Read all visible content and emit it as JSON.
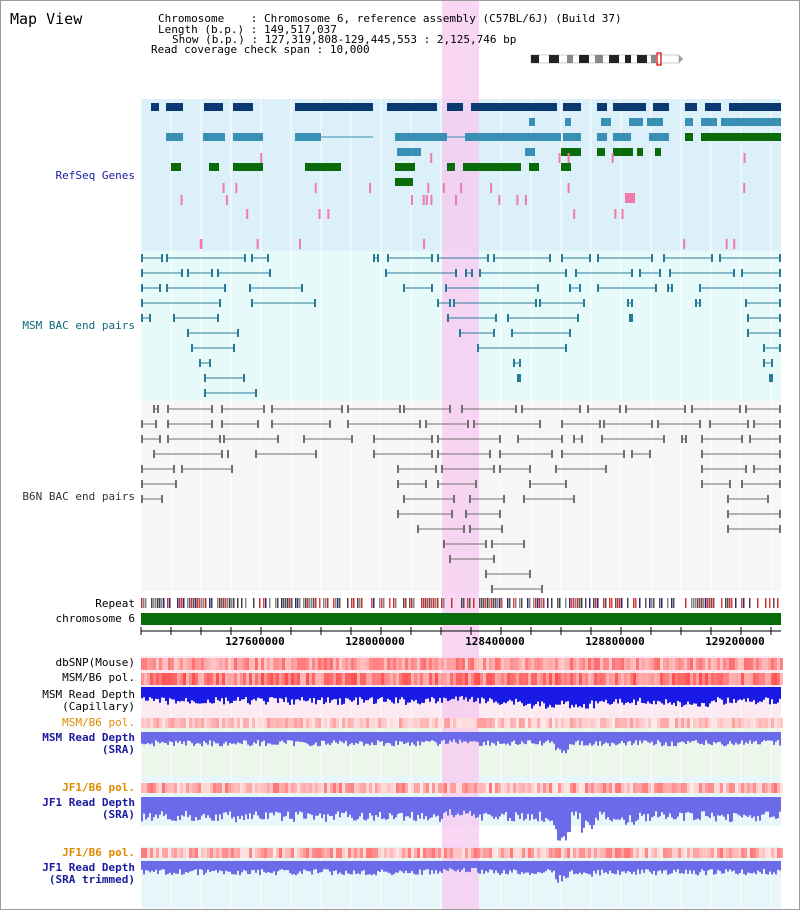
{
  "title": "Map View",
  "info": {
    "chromosome_label": "Chromosome",
    "chromosome_value": "Chromosome 6, reference assembly (C57BL/6J) (Build 37)",
    "length_label": "Length (b.p.)",
    "length_value": "149,517,037",
    "show_label": "Show (b.p.)",
    "show_value": "127,319,808-129,445,553 : 2,125,746 bp",
    "span_label": "Read coverage check span",
    "span_value": "10,000"
  },
  "tracks": {
    "refseq": "RefSeq Genes",
    "msm_bac": "MSM BAC end pairs",
    "b6n_bac": "B6N BAC end pairs",
    "repeat": "Repeat",
    "chromosome": "chromosome 6",
    "dbsnp": "dbSNP(Mouse)",
    "msm_b6_pol_1": "MSM/B6 pol.",
    "msm_read_depth_cap_1": "MSM Read Depth",
    "msm_read_depth_cap_2": "(Capillary)",
    "msm_b6_pol_2": "MSM/B6 pol.",
    "msm_read_depth_sra_1": "MSM Read Depth",
    "msm_read_depth_sra_2": "(SRA)",
    "jf1_b6_pol_1": "JF1/B6 pol.",
    "jf1_read_depth_1": "JF1 Read Depth",
    "jf1_read_depth_2": "(SRA)",
    "jf1_b6_pol_2": "JF1/B6 pol.",
    "jf1_read_depth_trim_1": "JF1 Read Depth",
    "jf1_read_depth_trim_2": "(SRA trimmed)"
  },
  "axis": {
    "ticks": [
      "127600000",
      "128000000",
      "128400000",
      "128800000",
      "129200000"
    ]
  },
  "colors": {
    "refseq_dark": "#0b3a73",
    "refseq_mid": "#3a8fb5",
    "refseq_green": "#0a6b0a",
    "refseq_pink": "#f07aa8",
    "refseq_bg": "#dcf0fa",
    "msm_bg": "#e8fafa",
    "msm_line": "#2a7a9a",
    "b6n_line": "#707070",
    "highlight": "#f7c8f0",
    "depth_blue": "#1a1ae6",
    "depth_light": "#6b6bea",
    "chrom_green": "#0a6b0a"
  }
}
